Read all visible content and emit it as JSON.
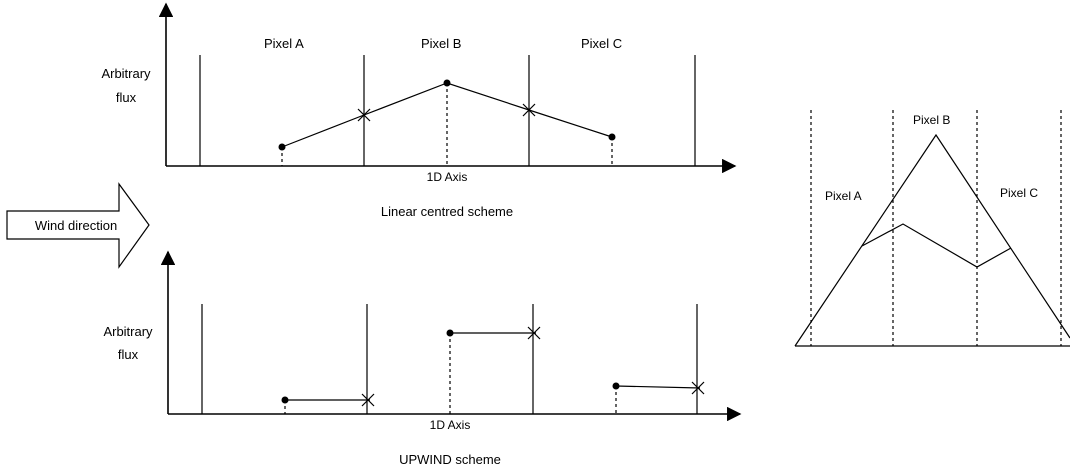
{
  "top_panel": {
    "pixel_labels": [
      "Pixel A",
      "Pixel B",
      "Pixel C"
    ],
    "y_label_line1": "Arbitrary",
    "y_label_line2": "flux",
    "x_label": "1D Axis",
    "caption": "Linear centred scheme"
  },
  "wind": {
    "label": "Wind direction"
  },
  "bottom_panel": {
    "y_label_line1": "Arbitrary",
    "y_label_line2": "flux",
    "x_label": "1D Axis",
    "caption": "UPWIND scheme"
  },
  "right_panel": {
    "pixel_a": "Pixel A",
    "pixel_b": "Pixel B",
    "pixel_c": "Pixel C"
  }
}
